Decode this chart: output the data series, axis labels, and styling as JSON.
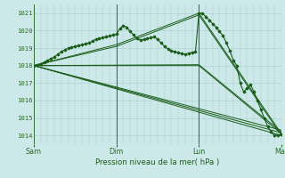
{
  "xlabel": "Pression niveau de la mer( hPa )",
  "bg_color": "#cce8e8",
  "grid_color_v": "#a8d0cc",
  "grid_color_h": "#a8d0cc",
  "line_color": "#1a5c1a",
  "tick_label_color": "#2a6c2a",
  "ylim": [
    1013.5,
    1021.5
  ],
  "yticks": [
    1014,
    1015,
    1016,
    1017,
    1018,
    1019,
    1020,
    1021
  ],
  "xlim": [
    0,
    72
  ],
  "xtick_positions": [
    0,
    24,
    48,
    72
  ],
  "xtick_labels": [
    "Sam",
    "Dim",
    "Lun",
    "Mar"
  ],
  "fan_lines": [
    {
      "x": [
        0,
        72
      ],
      "y": [
        1018.0,
        1014.0
      ]
    },
    {
      "x": [
        0,
        72
      ],
      "y": [
        1018.0,
        1014.15
      ]
    },
    {
      "x": [
        0,
        72
      ],
      "y": [
        1018.0,
        1014.3
      ]
    },
    {
      "x": [
        0,
        48,
        72
      ],
      "y": [
        1018.0,
        1018.0,
        1014.1
      ]
    },
    {
      "x": [
        0,
        48,
        72
      ],
      "y": [
        1018.0,
        1018.05,
        1014.2
      ]
    },
    {
      "x": [
        0,
        24,
        48,
        72
      ],
      "y": [
        1018.0,
        1019.1,
        1020.9,
        1014.0
      ]
    },
    {
      "x": [
        0,
        24,
        48,
        72
      ],
      "y": [
        1018.0,
        1019.2,
        1021.0,
        1014.1
      ]
    }
  ],
  "wiggly_x": [
    0,
    1,
    2,
    3,
    4,
    5,
    6,
    7,
    8,
    9,
    10,
    11,
    12,
    13,
    14,
    15,
    16,
    17,
    18,
    19,
    20,
    21,
    22,
    23,
    24,
    25,
    26,
    27,
    28,
    29,
    30,
    31,
    32,
    33,
    34,
    35,
    36,
    37,
    38,
    39,
    40,
    41,
    42,
    43,
    44,
    45,
    46,
    47,
    48,
    49,
    50,
    51,
    52,
    53,
    54,
    55,
    56,
    57,
    58,
    59,
    60,
    61,
    62,
    63,
    64,
    65,
    66,
    67,
    68,
    69,
    70,
    71,
    72
  ],
  "wiggly_y": [
    1018.0,
    1018.05,
    1018.1,
    1018.2,
    1018.3,
    1018.4,
    1018.5,
    1018.65,
    1018.8,
    1018.9,
    1019.0,
    1019.05,
    1019.1,
    1019.15,
    1019.2,
    1019.25,
    1019.3,
    1019.4,
    1019.5,
    1019.55,
    1019.6,
    1019.65,
    1019.7,
    1019.75,
    1019.8,
    1020.1,
    1020.3,
    1020.2,
    1019.95,
    1019.75,
    1019.55,
    1019.45,
    1019.5,
    1019.55,
    1019.6,
    1019.65,
    1019.5,
    1019.3,
    1019.1,
    1018.95,
    1018.85,
    1018.8,
    1018.75,
    1018.7,
    1018.65,
    1018.7,
    1018.75,
    1018.8,
    1021.0,
    1021.0,
    1020.8,
    1020.6,
    1020.4,
    1020.2,
    1019.95,
    1019.7,
    1019.3,
    1018.85,
    1018.3,
    1018.0,
    1017.0,
    1016.5,
    1016.7,
    1016.9,
    1016.5,
    1016.0,
    1015.5,
    1015.0,
    1014.5,
    1014.2,
    1014.0,
    1014.0,
    1014.05
  ]
}
